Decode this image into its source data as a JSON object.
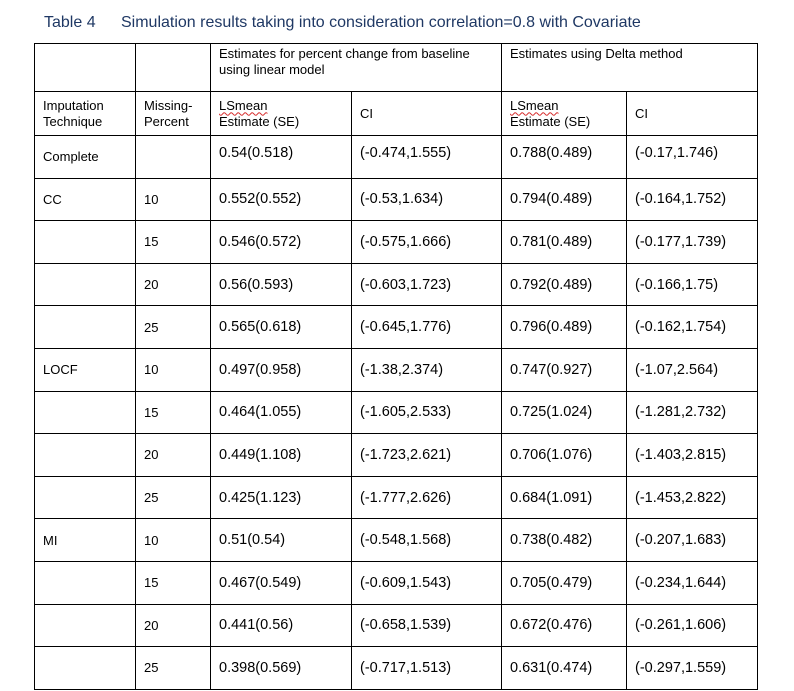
{
  "caption": {
    "number": "Table 4",
    "title": "Simulation results taking into consideration correlation=0.8 with Covariate"
  },
  "header": {
    "group_linear": "Estimates for percent change from baseline using linear model",
    "group_delta": "Estimates using Delta method",
    "imputation": "Imputation Technique",
    "missing_line1": "Missing-",
    "missing_line2": "Percent",
    "lsmean_word": "LSmean",
    "estimate_se": "Estimate (SE)",
    "ci": "CI"
  },
  "rows": [
    {
      "tech": "Complete",
      "pct": "",
      "lin_est": "0.54(0.518)",
      "lin_ci": "(-0.474,1.555)",
      "del_est": "0.788(0.489)",
      "del_ci": "(-0.17,1.746)"
    },
    {
      "tech": "CC",
      "pct": "10",
      "lin_est": "0.552(0.552)",
      "lin_ci": "(-0.53,1.634)",
      "del_est": "0.794(0.489)",
      "del_ci": "(-0.164,1.752)"
    },
    {
      "tech": "",
      "pct": "15",
      "lin_est": "0.546(0.572)",
      "lin_ci": "(-0.575,1.666)",
      "del_est": "0.781(0.489)",
      "del_ci": "(-0.177,1.739)"
    },
    {
      "tech": "",
      "pct": "20",
      "lin_est": "0.56(0.593)",
      "lin_ci": "(-0.603,1.723)",
      "del_est": "0.792(0.489)",
      "del_ci": "(-0.166,1.75)"
    },
    {
      "tech": "",
      "pct": "25",
      "lin_est": "0.565(0.618)",
      "lin_ci": "(-0.645,1.776)",
      "del_est": "0.796(0.489)",
      "del_ci": "(-0.162,1.754)"
    },
    {
      "tech": "LOCF",
      "pct": "10",
      "lin_est": "0.497(0.958)",
      "lin_ci": "(-1.38,2.374)",
      "del_est": "0.747(0.927)",
      "del_ci": "(-1.07,2.564)"
    },
    {
      "tech": "",
      "pct": "15",
      "lin_est": "0.464(1.055)",
      "lin_ci": "(-1.605,2.533)",
      "del_est": "0.725(1.024)",
      "del_ci": "(-1.281,2.732)"
    },
    {
      "tech": "",
      "pct": "20",
      "lin_est": "0.449(1.108)",
      "lin_ci": "(-1.723,2.621)",
      "del_est": "0.706(1.076)",
      "del_ci": "(-1.403,2.815)"
    },
    {
      "tech": "",
      "pct": "25",
      "lin_est": "0.425(1.123)",
      "lin_ci": "(-1.777,2.626)",
      "del_est": "0.684(1.091)",
      "del_ci": "(-1.453,2.822)"
    },
    {
      "tech": "MI",
      "pct": "10",
      "lin_est": "0.51(0.54)",
      "lin_ci": "(-0.548,1.568)",
      "del_est": "0.738(0.482)",
      "del_ci": "(-0.207,1.683)"
    },
    {
      "tech": "",
      "pct": "15",
      "lin_est": "0.467(0.549)",
      "lin_ci": "(-0.609,1.543)",
      "del_est": "0.705(0.479)",
      "del_ci": "(-0.234,1.644)"
    },
    {
      "tech": "",
      "pct": "20",
      "lin_est": "0.441(0.56)",
      "lin_ci": "(-0.658,1.539)",
      "del_est": "0.672(0.476)",
      "del_ci": "(-0.261,1.606)"
    },
    {
      "tech": "",
      "pct": "25",
      "lin_est": "0.398(0.569)",
      "lin_ci": "(-0.717,1.513)",
      "del_est": "0.631(0.474)",
      "del_ci": "(-0.297,1.559)"
    }
  ]
}
